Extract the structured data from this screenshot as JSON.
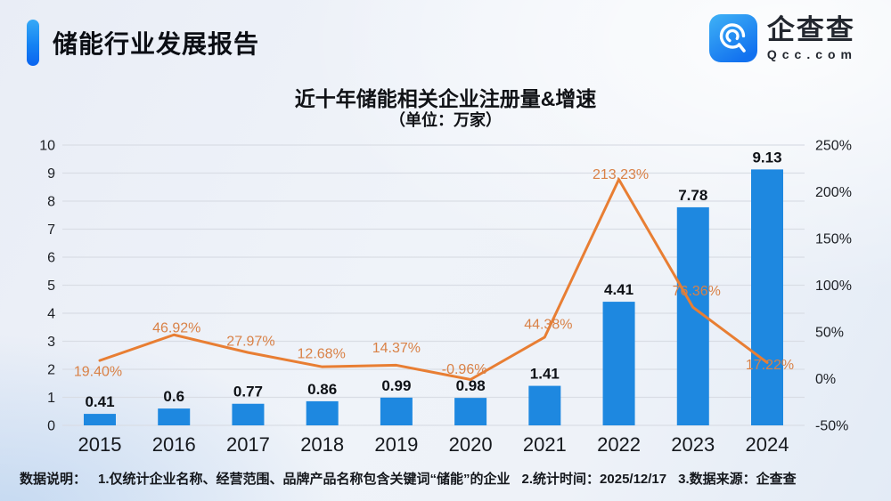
{
  "header": {
    "title": "储能行业发展报告",
    "logo": {
      "name": "企查查",
      "domain": "Qcc.com"
    }
  },
  "chart": {
    "title": "近十年储能相关企业注册量&增速",
    "subtitle": "（单位：万家）"
  },
  "chart_data": {
    "type": "bar+line",
    "title": "近十年储能相关企业注册量&增速",
    "subtitle": "（单位：万家）",
    "categories": [
      "2015",
      "2016",
      "2017",
      "2018",
      "2019",
      "2020",
      "2021",
      "2022",
      "2023",
      "2024"
    ],
    "series": [
      {
        "name": "注册量（万家）",
        "type": "bar",
        "axis": "left",
        "color": "#1e88e0",
        "values": [
          0.41,
          0.6,
          0.77,
          0.86,
          0.99,
          0.98,
          1.41,
          4.41,
          7.78,
          9.13
        ],
        "value_labels": [
          "0.41",
          "0.6",
          "0.77",
          "0.86",
          "0.99",
          "0.98",
          "1.41",
          "4.41",
          "7.78",
          "9.13"
        ]
      },
      {
        "name": "增速",
        "type": "line",
        "axis": "right",
        "color": "#e87e33",
        "label_color": "#d98146",
        "values": [
          19.4,
          46.92,
          27.97,
          12.68,
          14.37,
          -0.96,
          44.38,
          213.23,
          76.36,
          17.22
        ],
        "value_labels": [
          "19.40%",
          "46.92%",
          "27.97%",
          "12.68%",
          "14.37%",
          "-0.96%",
          "44.38%",
          "213.23%",
          "76.36%",
          "17.22%"
        ]
      }
    ],
    "left_axis": {
      "min": 0,
      "max": 10,
      "ticks": [
        0,
        1,
        2,
        3,
        4,
        5,
        6,
        7,
        8,
        9,
        10
      ]
    },
    "right_axis": {
      "min": -50,
      "max": 250,
      "tick_labels": [
        "250%",
        "200%",
        "150%",
        "100%",
        "50%",
        "0%",
        "-50%"
      ]
    },
    "grid": true,
    "legend": "none"
  },
  "footer": {
    "label": "数据说明：",
    "items": [
      "1.仅统计企业名称、经营范围、品牌产品名称包含关键词“储能”的企业",
      "2.统计时间：2025/12/17",
      "3.数据来源：企查查"
    ]
  },
  "colors": {
    "bar": "#1e88e0",
    "line": "#e87e33",
    "grid": "#d9dde5",
    "axis_text": "#1c1f24",
    "accent_top": "#35a9f6",
    "accent_bottom": "#0a64f0"
  }
}
